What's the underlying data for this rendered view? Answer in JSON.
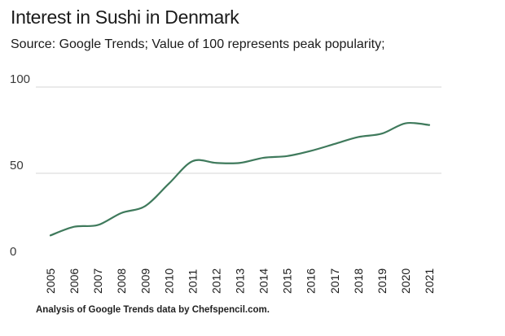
{
  "chart_data": {
    "type": "line",
    "title": "Interest in Sushi in Denmark",
    "subtitle": "Source: Google Trends; Value of 100 represents peak popularity;",
    "footer": "Analysis of Google Trends data by Chefspencil.com.",
    "xlabel": "",
    "ylabel": "",
    "ylim": [
      0,
      100
    ],
    "yticks": [
      0,
      50,
      100
    ],
    "grid": true,
    "x": [
      "2005",
      "2006",
      "2007",
      "2008",
      "2009",
      "2010",
      "2011",
      "2012",
      "2013",
      "2014",
      "2015",
      "2016",
      "2017",
      "2018",
      "2019",
      "2020",
      "2021"
    ],
    "series": [
      {
        "values": [
          14,
          19,
          20,
          27,
          31,
          44,
          57,
          56,
          56,
          59,
          60,
          63,
          67,
          71,
          73,
          79,
          78
        ],
        "color": "#3f7a5c"
      }
    ]
  }
}
